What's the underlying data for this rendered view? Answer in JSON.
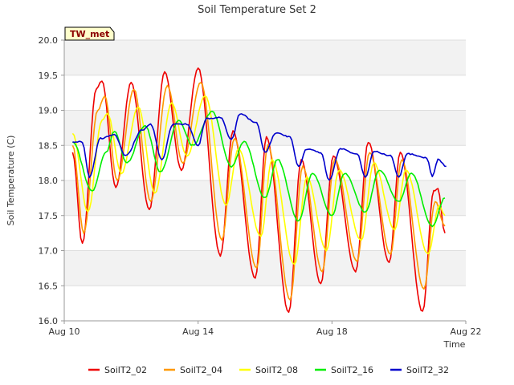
{
  "chart_data": {
    "type": "line",
    "title": "Soil Temperature Set 2",
    "xlabel": "Time",
    "ylabel": "Soil Temperature (C)",
    "badge": "TW_met",
    "x_unit": "date",
    "xlim": [
      "2023-08-10",
      "2023-08-22"
    ],
    "ylim": [
      16.0,
      20.0
    ],
    "x_ticks": [
      {
        "x": "2023-08-10",
        "label": "Aug 10"
      },
      {
        "x": "2023-08-14",
        "label": "Aug 14"
      },
      {
        "x": "2023-08-18",
        "label": "Aug 18"
      },
      {
        "x": "2023-08-22",
        "label": "Aug 22"
      }
    ],
    "y_ticks": [
      "16.0",
      "16.5",
      "17.0",
      "17.5",
      "18.0",
      "18.5",
      "19.0",
      "19.5",
      "20.0"
    ],
    "grid": true,
    "legend_position": "bottom",
    "series": [
      {
        "name": "SoilT2_02",
        "color": "#ee0000",
        "points": [
          [
            "2023-08-10 06:00",
            18.4
          ],
          [
            "2023-08-10 13:00",
            17.1
          ],
          [
            "2023-08-10 23:00",
            19.3
          ],
          [
            "2023-08-11 03:00",
            19.42
          ],
          [
            "2023-08-11 13:00",
            17.9
          ],
          [
            "2023-08-12 00:00",
            19.4
          ],
          [
            "2023-08-12 13:00",
            17.58
          ],
          [
            "2023-08-13 00:00",
            19.55
          ],
          [
            "2023-08-13 12:00",
            18.15
          ],
          [
            "2023-08-14 00:00",
            19.6
          ],
          [
            "2023-08-14 16:00",
            16.93
          ],
          [
            "2023-08-15 01:00",
            18.7
          ],
          [
            "2023-08-15 17:00",
            16.6
          ],
          [
            "2023-08-16 01:00",
            18.62
          ],
          [
            "2023-08-16 17:00",
            16.12
          ],
          [
            "2023-08-17 02:00",
            18.3
          ],
          [
            "2023-08-17 16:00",
            16.53
          ],
          [
            "2023-08-18 01:00",
            18.35
          ],
          [
            "2023-08-18 17:00",
            16.7
          ],
          [
            "2023-08-19 02:00",
            18.55
          ],
          [
            "2023-08-19 17:00",
            16.83
          ],
          [
            "2023-08-20 01:00",
            18.4
          ],
          [
            "2023-08-20 17:00",
            16.13
          ],
          [
            "2023-08-21 01:00",
            17.85
          ],
          [
            "2023-08-21 04:00",
            17.88
          ],
          [
            "2023-08-21 09:00",
            17.25
          ]
        ]
      },
      {
        "name": "SoilT2_04",
        "color": "#ff9900",
        "points": [
          [
            "2023-08-10 06:00",
            18.5
          ],
          [
            "2023-08-10 14:00",
            17.25
          ],
          [
            "2023-08-11 00:00",
            19.0
          ],
          [
            "2023-08-11 05:00",
            19.2
          ],
          [
            "2023-08-11 14:00",
            18.0
          ],
          [
            "2023-08-12 02:00",
            19.3
          ],
          [
            "2023-08-12 14:00",
            17.7
          ],
          [
            "2023-08-13 02:00",
            19.35
          ],
          [
            "2023-08-13 13:00",
            18.25
          ],
          [
            "2023-08-14 02:00",
            19.4
          ],
          [
            "2023-08-14 17:00",
            17.15
          ],
          [
            "2023-08-15 02:00",
            18.6
          ],
          [
            "2023-08-15 18:00",
            16.75
          ],
          [
            "2023-08-16 02:00",
            18.5
          ],
          [
            "2023-08-16 18:00",
            16.3
          ],
          [
            "2023-08-17 03:00",
            18.2
          ],
          [
            "2023-08-17 17:00",
            16.7
          ],
          [
            "2023-08-18 02:00",
            18.3
          ],
          [
            "2023-08-18 18:00",
            16.85
          ],
          [
            "2023-08-19 03:00",
            18.4
          ],
          [
            "2023-08-19 18:00",
            16.95
          ],
          [
            "2023-08-20 02:00",
            18.3
          ],
          [
            "2023-08-20 18:00",
            16.45
          ],
          [
            "2023-08-21 02:00",
            17.7
          ],
          [
            "2023-08-21 09:00",
            17.35
          ]
        ]
      },
      {
        "name": "SoilT2_08",
        "color": "#ffff00",
        "points": [
          [
            "2023-08-10 06:00",
            18.67
          ],
          [
            "2023-08-10 17:00",
            17.55
          ],
          [
            "2023-08-11 03:00",
            18.85
          ],
          [
            "2023-08-11 07:00",
            18.95
          ],
          [
            "2023-08-11 17:00",
            18.1
          ],
          [
            "2023-08-12 05:00",
            19.05
          ],
          [
            "2023-08-12 17:00",
            17.82
          ],
          [
            "2023-08-13 05:00",
            19.1
          ],
          [
            "2023-08-13 16:00",
            18.35
          ],
          [
            "2023-08-14 05:00",
            19.2
          ],
          [
            "2023-08-14 20:00",
            17.65
          ],
          [
            "2023-08-15 05:00",
            18.45
          ],
          [
            "2023-08-15 21:00",
            17.2
          ],
          [
            "2023-08-16 05:00",
            18.3
          ],
          [
            "2023-08-16 21:00",
            16.8
          ],
          [
            "2023-08-17 06:00",
            18.05
          ],
          [
            "2023-08-17 20:00",
            17.0
          ],
          [
            "2023-08-18 05:00",
            18.15
          ],
          [
            "2023-08-18 21:00",
            17.15
          ],
          [
            "2023-08-19 06:00",
            18.25
          ],
          [
            "2023-08-19 21:00",
            17.3
          ],
          [
            "2023-08-20 05:00",
            18.15
          ],
          [
            "2023-08-20 21:00",
            16.95
          ],
          [
            "2023-08-21 05:00",
            17.65
          ],
          [
            "2023-08-21 09:00",
            17.5
          ]
        ]
      },
      {
        "name": "SoilT2_16",
        "color": "#00ee00",
        "points": [
          [
            "2023-08-10 06:00",
            18.55
          ],
          [
            "2023-08-10 20:00",
            17.85
          ],
          [
            "2023-08-11 06:00",
            18.4
          ],
          [
            "2023-08-11 12:00",
            18.7
          ],
          [
            "2023-08-11 21:00",
            18.25
          ],
          [
            "2023-08-12 10:00",
            18.78
          ],
          [
            "2023-08-12 21:00",
            18.12
          ],
          [
            "2023-08-13 10:00",
            18.85
          ],
          [
            "2023-08-13 20:00",
            18.5
          ],
          [
            "2023-08-14 10:00",
            18.98
          ],
          [
            "2023-08-15 00:00",
            18.2
          ],
          [
            "2023-08-15 09:00",
            18.55
          ],
          [
            "2023-08-16 00:00",
            17.75
          ],
          [
            "2023-08-16 09:00",
            18.3
          ],
          [
            "2023-08-17 00:00",
            17.42
          ],
          [
            "2023-08-17 10:00",
            18.1
          ],
          [
            "2023-08-18 00:00",
            17.5
          ],
          [
            "2023-08-18 09:00",
            18.1
          ],
          [
            "2023-08-19 00:00",
            17.55
          ],
          [
            "2023-08-19 10:00",
            18.15
          ],
          [
            "2023-08-20 00:00",
            17.7
          ],
          [
            "2023-08-20 09:00",
            18.1
          ],
          [
            "2023-08-21 00:00",
            17.35
          ],
          [
            "2023-08-21 09:00",
            17.75
          ]
        ]
      },
      {
        "name": "SoilT2_32",
        "color": "#0000cc",
        "points": [
          [
            "2023-08-10 06:00",
            18.55
          ],
          [
            "2023-08-10 13:00",
            18.55
          ],
          [
            "2023-08-10 18:00",
            18.05
          ],
          [
            "2023-08-11 02:00",
            18.6
          ],
          [
            "2023-08-11 12:00",
            18.65
          ],
          [
            "2023-08-11 20:00",
            18.35
          ],
          [
            "2023-08-12 08:00",
            18.72
          ],
          [
            "2023-08-12 14:00",
            18.8
          ],
          [
            "2023-08-12 22:00",
            18.3
          ],
          [
            "2023-08-13 06:00",
            18.8
          ],
          [
            "2023-08-13 16:00",
            18.8
          ],
          [
            "2023-08-14 00:00",
            18.5
          ],
          [
            "2023-08-14 06:00",
            18.88
          ],
          [
            "2023-08-14 16:00",
            18.9
          ],
          [
            "2023-08-15 00:00",
            18.58
          ],
          [
            "2023-08-15 06:00",
            18.95
          ],
          [
            "2023-08-15 18:00",
            18.82
          ],
          [
            "2023-08-16 00:00",
            18.4
          ],
          [
            "2023-08-16 08:00",
            18.68
          ],
          [
            "2023-08-16 18:00",
            18.62
          ],
          [
            "2023-08-17 00:00",
            18.2
          ],
          [
            "2023-08-17 06:00",
            18.45
          ],
          [
            "2023-08-17 16:00",
            18.4
          ],
          [
            "2023-08-17 22:00",
            18.0
          ],
          [
            "2023-08-18 06:00",
            18.45
          ],
          [
            "2023-08-18 18:00",
            18.38
          ],
          [
            "2023-08-19 00:00",
            18.05
          ],
          [
            "2023-08-19 06:00",
            18.42
          ],
          [
            "2023-08-19 18:00",
            18.35
          ],
          [
            "2023-08-20 00:00",
            18.05
          ],
          [
            "2023-08-20 06:00",
            18.38
          ],
          [
            "2023-08-20 20:00",
            18.32
          ],
          [
            "2023-08-21 00:00",
            18.05
          ],
          [
            "2023-08-21 04:00",
            18.3
          ],
          [
            "2023-08-21 10:00",
            18.2
          ]
        ]
      }
    ]
  }
}
